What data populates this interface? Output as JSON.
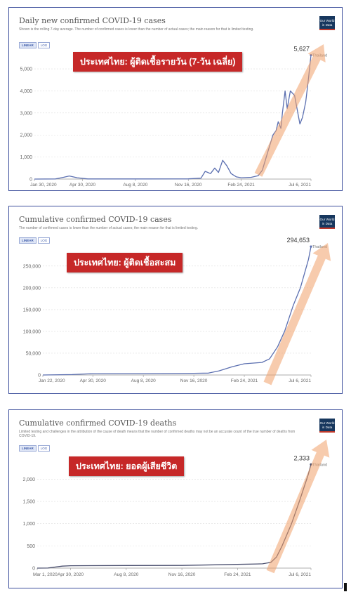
{
  "charts": [
    {
      "title": "Daily new confirmed COVID-19 cases",
      "subtitle": "Shown is the rolling 7-day average. The number of confirmed cases is lower than the number of actual cases; the main reason for that is limited testing.",
      "banner": "ประเทศไทย: ผู้ติดเชื้อรายวัน (7-วัน เฉลี่ย)",
      "end_value": "5,627",
      "country_label": "Thailand",
      "toggle_linear": "LINEAR",
      "toggle_log": "LOG",
      "owid": "Our World in Data"
    },
    {
      "title": "Cumulative confirmed COVID-19 cases",
      "subtitle": "The number of confirmed cases is lower than the number of actual cases; the main reason for that is limited testing.",
      "banner": "ประเทศไทย: ผู้ติดเชื้อสะสม",
      "end_value": "294,653",
      "country_label": "Thailand",
      "toggle_linear": "LINEAR",
      "toggle_log": "LOG",
      "owid": "Our World in Data"
    },
    {
      "title": "Cumulative confirmed COVID-19 deaths",
      "subtitle": "Limited testing and challenges in the attribution of the cause of death means that the number of confirmed deaths may not be an accurate count of the true number of deaths from COVID-19.",
      "banner": "ประเทศไทย: ยอดผู้เสียชีวิต",
      "end_value": "2,333",
      "country_label": "Thailand",
      "toggle_linear": "LINEAR",
      "toggle_log": "LOG",
      "owid": "Our World in Data"
    }
  ],
  "chart_data": [
    {
      "type": "line",
      "x_tick_labels": [
        "Jan 30, 2020",
        "Apr 30, 2020",
        "Aug 8, 2020",
        "Nov 16, 2020",
        "Feb 24, 2021",
        "Jul 6, 2021"
      ],
      "x_ticks": [
        "2020-01-30",
        "2020-04-30",
        "2020-08-08",
        "2020-11-16",
        "2021-02-24",
        "2021-07-06"
      ],
      "y_ticks": [
        0,
        1000,
        2000,
        3000,
        4000,
        5000
      ],
      "y_tick_labels": [
        "0",
        "1,000",
        "2,000",
        "3,000",
        "4,000",
        "5,000"
      ],
      "xlim": [
        "2020-01-30",
        "2021-07-06"
      ],
      "ylim": [
        0,
        5800
      ],
      "grid": true,
      "color": "#5b6fb0",
      "series": [
        {
          "name": "Thailand",
          "x": [
            "2020-01-30",
            "2020-03-10",
            "2020-03-25",
            "2020-04-05",
            "2020-04-20",
            "2020-05-10",
            "2020-07-01",
            "2020-09-01",
            "2020-11-16",
            "2020-12-10",
            "2020-12-18",
            "2020-12-28",
            "2021-01-05",
            "2021-01-12",
            "2021-01-20",
            "2021-01-28",
            "2021-02-05",
            "2021-02-15",
            "2021-02-24",
            "2021-03-15",
            "2021-03-28",
            "2021-04-05",
            "2021-04-15",
            "2021-04-25",
            "2021-05-01",
            "2021-05-05",
            "2021-05-10",
            "2021-05-13",
            "2021-05-18",
            "2021-05-22",
            "2021-05-28",
            "2021-06-05",
            "2021-06-15",
            "2021-06-20",
            "2021-06-26",
            "2021-07-01",
            "2021-07-06"
          ],
          "y": [
            0,
            5,
            80,
            140,
            60,
            5,
            5,
            5,
            10,
            40,
            350,
            250,
            500,
            300,
            850,
            600,
            250,
            100,
            60,
            80,
            150,
            400,
            1200,
            2000,
            2200,
            2600,
            2300,
            3000,
            4000,
            3200,
            4000,
            3800,
            2500,
            2800,
            3500,
            4500,
            5627
          ]
        }
      ]
    },
    {
      "type": "line",
      "x_tick_labels": [
        "Jan 22, 2020",
        "Apr 30, 2020",
        "Aug 8, 2020",
        "Nov 16, 2020",
        "Feb 24, 2021",
        "Jul 6, 2021"
      ],
      "x_ticks": [
        "2020-01-22",
        "2020-04-30",
        "2020-08-08",
        "2020-11-16",
        "2021-02-24",
        "2021-07-06"
      ],
      "y_ticks": [
        0,
        50000,
        100000,
        150000,
        200000,
        250000
      ],
      "y_tick_labels": [
        "0",
        "50,000",
        "100,000",
        "150,000",
        "200,000",
        "250,000"
      ],
      "xlim": [
        "2020-01-22",
        "2021-07-06"
      ],
      "ylim": [
        0,
        290000
      ],
      "grid": true,
      "color": "#5b6fb0",
      "series": [
        {
          "name": "Thailand",
          "x": [
            "2020-01-22",
            "2020-03-20",
            "2020-04-30",
            "2020-08-08",
            "2020-11-16",
            "2020-12-15",
            "2021-01-05",
            "2021-01-31",
            "2021-02-24",
            "2021-03-31",
            "2021-04-15",
            "2021-05-01",
            "2021-05-15",
            "2021-06-01",
            "2021-06-15",
            "2021-07-01",
            "2021-07-06"
          ],
          "y": [
            0,
            1000,
            3000,
            3300,
            3900,
            4300,
            9500,
            19000,
            25800,
            28900,
            37000,
            65000,
            101000,
            160000,
            200000,
            265000,
            294653
          ]
        }
      ]
    },
    {
      "type": "line",
      "x_tick_labels": [
        "Mar 1, 2020",
        "Apr 30, 2020",
        "Aug 8, 2020",
        "Nov 16, 2020",
        "Feb 24, 2021",
        "Jul 6, 2021"
      ],
      "x_ticks": [
        "2020-03-01",
        "2020-04-30",
        "2020-08-08",
        "2020-11-16",
        "2021-02-24",
        "2021-07-06"
      ],
      "y_ticks": [
        0,
        500,
        1000,
        1500,
        2000
      ],
      "y_tick_labels": [
        "0",
        "500",
        "1,000",
        "1,500",
        "2,000"
      ],
      "xlim": [
        "2020-03-01",
        "2021-07-06"
      ],
      "ylim": [
        0,
        2450
      ],
      "grid": true,
      "color": "#4a4f6e",
      "series": [
        {
          "name": "Thailand",
          "x": [
            "2020-03-01",
            "2020-03-20",
            "2020-04-15",
            "2020-04-30",
            "2020-08-08",
            "2020-11-16",
            "2021-01-15",
            "2021-02-24",
            "2021-03-31",
            "2021-04-10",
            "2021-04-25",
            "2021-05-05",
            "2021-05-15",
            "2021-06-01",
            "2021-06-15",
            "2021-07-01",
            "2021-07-06"
          ],
          "y": [
            0,
            1,
            45,
            54,
            58,
            60,
            75,
            83,
            94,
            97,
            130,
            250,
            500,
            1000,
            1500,
            2100,
            2333
          ]
        }
      ]
    }
  ]
}
